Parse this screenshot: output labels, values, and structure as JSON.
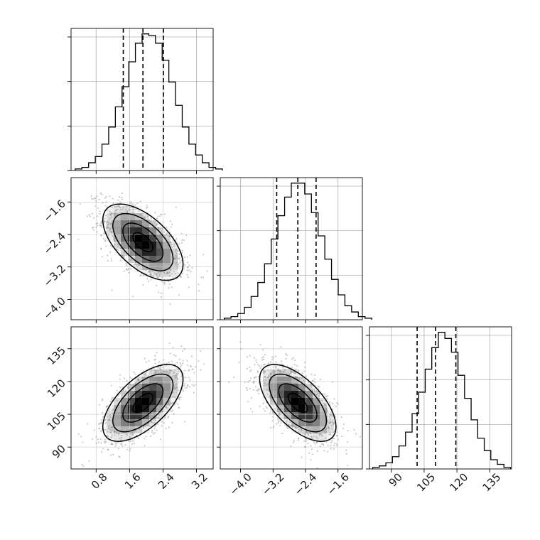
{
  "chart_data": {
    "type": "corner",
    "grid": true,
    "parameters": [
      {
        "range": [
          0.2,
          3.6
        ],
        "ticks": [
          0.8,
          1.6,
          2.4,
          3.2
        ],
        "tick_labels": [
          "0.8",
          "1.6",
          "2.4",
          "3.2"
        ]
      },
      {
        "range": [
          -4.5,
          -1.0
        ],
        "ticks": [
          -4.0,
          -3.2,
          -2.4,
          -1.6
        ],
        "tick_labels": [
          "−4.0",
          "−3.2",
          "−2.4",
          "−1.6"
        ]
      },
      {
        "range": [
          80,
          145
        ],
        "ticks": [
          90,
          105,
          120,
          135
        ],
        "tick_labels": [
          "90",
          "105",
          "120",
          "135"
        ]
      }
    ],
    "quantiles": [
      [
        1.45,
        1.92,
        2.41
      ],
      [
        -3.11,
        -2.59,
        -2.14
      ],
      [
        101.8,
        110.2,
        119.5
      ]
    ],
    "histograms": [
      {
        "bin_start": 0.3,
        "bin_width": 0.16,
        "counts": [
          1,
          2,
          5,
          9,
          17,
          28,
          41,
          54,
          70,
          82,
          88,
          87,
          82,
          71,
          57,
          42,
          28,
          17,
          10,
          5,
          2,
          1
        ]
      },
      {
        "bin_start": -4.4,
        "bin_width": 0.165,
        "counts": [
          1,
          2,
          4,
          8,
          15,
          24,
          36,
          52,
          67,
          79,
          88,
          88,
          81,
          69,
          54,
          39,
          26,
          16,
          9,
          5,
          2,
          1
        ]
      },
      {
        "bin_start": 81.5,
        "bin_width": 3.0,
        "counts": [
          1,
          2,
          4,
          8,
          15,
          24,
          36,
          50,
          65,
          79,
          89,
          85,
          76,
          61,
          46,
          32,
          20,
          12,
          6,
          3,
          1
        ]
      }
    ],
    "pairs": [
      {
        "x": 0,
        "y": 1,
        "mean": [
          1.92,
          -2.59
        ],
        "sd": [
          0.48,
          0.47
        ],
        "rho": -0.58
      },
      {
        "x": 0,
        "y": 2,
        "mean": [
          1.92,
          110.2
        ],
        "sd": [
          0.48,
          8.8
        ],
        "rho": 0.62
      },
      {
        "x": 1,
        "y": 2,
        "mean": [
          -2.59,
          110.2
        ],
        "sd": [
          0.47,
          8.8
        ],
        "rho": -0.62
      }
    ]
  }
}
